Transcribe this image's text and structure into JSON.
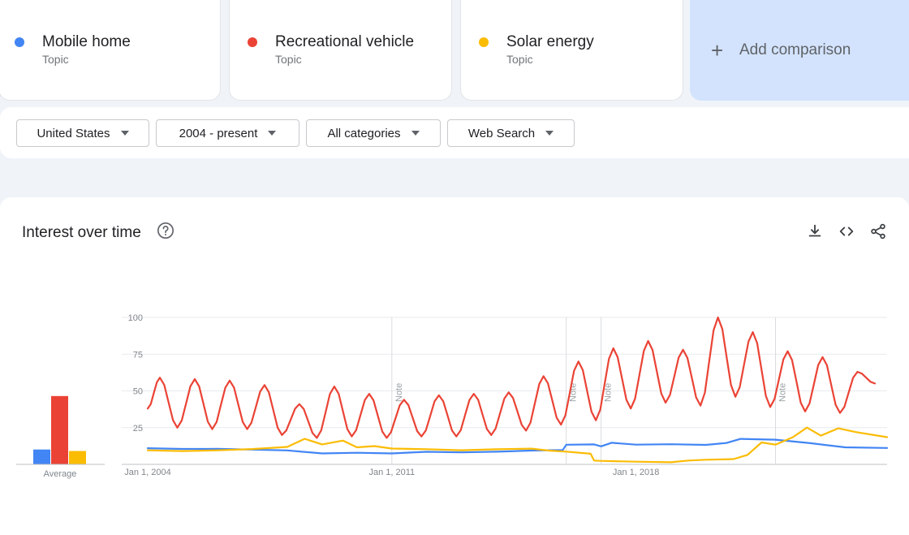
{
  "terms": [
    {
      "name": "Mobile home",
      "type": "Topic",
      "color": "#4285f4"
    },
    {
      "name": "Recreational vehicle",
      "type": "Topic",
      "color": "#ea4335"
    },
    {
      "name": "Solar energy",
      "type": "Topic",
      "color": "#fbbc04"
    }
  ],
  "add_comparison": {
    "icon": "+",
    "label": "Add comparison"
  },
  "filters": {
    "region": "United States",
    "time": "2004 - present",
    "category": "All categories",
    "search_type": "Web Search"
  },
  "panel": {
    "title": "Interest over time",
    "icons": [
      "help-icon",
      "download-icon",
      "embed-icon",
      "share-icon"
    ]
  },
  "chart_data": {
    "type": "line",
    "title": "Interest over time",
    "xlabel": "",
    "ylabel": "",
    "ylim": [
      0,
      100
    ],
    "y_ticks": [
      25,
      50,
      75,
      100
    ],
    "x_ticks": [
      "Jan 1, 2004",
      "Jan 1, 2011",
      "Jan 1, 2018"
    ],
    "x_range": [
      2004.0,
      2025.2
    ],
    "grid": true,
    "notes": [
      {
        "label": "Note",
        "x": 2011.0
      },
      {
        "label": "Note",
        "x": 2016.0
      },
      {
        "label": "Note",
        "x": 2017.0
      },
      {
        "label": "Note",
        "x": 2022.0
      }
    ],
    "average_label": "Average",
    "averages": [
      {
        "name": "Mobile home",
        "value": 10
      },
      {
        "name": "Recreational vehicle",
        "value": 46
      },
      {
        "name": "Solar energy",
        "value": 9
      }
    ],
    "series": [
      {
        "name": "Mobile home",
        "color": "#4285f4",
        "points": [
          [
            2004.0,
            11
          ],
          [
            2005.0,
            10
          ],
          [
            2006.0,
            10
          ],
          [
            2007.0,
            10
          ],
          [
            2008.0,
            10
          ],
          [
            2009.0,
            8
          ],
          [
            2010.0,
            8
          ],
          [
            2011.0,
            7
          ],
          [
            2012.0,
            8
          ],
          [
            2013.0,
            8
          ],
          [
            2014.0,
            9
          ],
          [
            2015.0,
            10
          ],
          [
            2015.9,
            10
          ],
          [
            2016.0,
            13
          ],
          [
            2016.8,
            13
          ],
          [
            2017.0,
            12
          ],
          [
            2017.3,
            15
          ],
          [
            2018.0,
            14
          ],
          [
            2019.0,
            14
          ],
          [
            2020.0,
            13
          ],
          [
            2020.6,
            14
          ],
          [
            2021.0,
            17
          ],
          [
            2022.0,
            17
          ],
          [
            2023.0,
            15
          ],
          [
            2024.0,
            12
          ],
          [
            2025.2,
            11
          ]
        ]
      },
      {
        "name": "Recreational vehicle",
        "color": "#ea4335",
        "peaks": [
          [
            2004.35,
            59
          ],
          [
            2005.35,
            58
          ],
          [
            2006.35,
            57
          ],
          [
            2007.35,
            54
          ],
          [
            2008.35,
            41
          ],
          [
            2009.35,
            53
          ],
          [
            2010.35,
            48
          ],
          [
            2011.35,
            44
          ],
          [
            2012.35,
            47
          ],
          [
            2013.35,
            48
          ],
          [
            2014.35,
            49
          ],
          [
            2015.35,
            60
          ],
          [
            2016.35,
            70
          ],
          [
            2017.35,
            79
          ],
          [
            2018.35,
            84
          ],
          [
            2019.35,
            78
          ],
          [
            2020.35,
            100
          ],
          [
            2021.35,
            90
          ],
          [
            2022.35,
            77
          ],
          [
            2023.35,
            73
          ],
          [
            2024.35,
            63
          ]
        ],
        "troughs": [
          [
            2004.0,
            38
          ],
          [
            2004.85,
            25
          ],
          [
            2005.85,
            24
          ],
          [
            2006.85,
            24
          ],
          [
            2007.85,
            20
          ],
          [
            2008.85,
            18
          ],
          [
            2009.85,
            19
          ],
          [
            2010.85,
            18
          ],
          [
            2011.85,
            19
          ],
          [
            2012.85,
            19
          ],
          [
            2013.85,
            20
          ],
          [
            2014.85,
            23
          ],
          [
            2015.85,
            27
          ],
          [
            2016.85,
            30
          ],
          [
            2017.85,
            38
          ],
          [
            2018.85,
            42
          ],
          [
            2019.85,
            40
          ],
          [
            2020.85,
            46
          ],
          [
            2021.85,
            39
          ],
          [
            2022.85,
            36
          ],
          [
            2023.85,
            35
          ],
          [
            2024.85,
            55
          ]
        ]
      },
      {
        "name": "Solar energy",
        "color": "#fbbc04",
        "points": [
          [
            2004.0,
            9
          ],
          [
            2005.0,
            9
          ],
          [
            2006.0,
            10
          ],
          [
            2007.0,
            11
          ],
          [
            2008.0,
            12
          ],
          [
            2008.5,
            17
          ],
          [
            2009.0,
            13
          ],
          [
            2009.6,
            16
          ],
          [
            2010.0,
            12
          ],
          [
            2010.5,
            13
          ],
          [
            2011.0,
            11
          ],
          [
            2012.0,
            10
          ],
          [
            2013.0,
            9
          ],
          [
            2014.0,
            10
          ],
          [
            2015.0,
            11
          ],
          [
            2015.5,
            10
          ],
          [
            2016.0,
            9
          ],
          [
            2016.7,
            7
          ],
          [
            2016.8,
            2
          ],
          [
            2017.0,
            2
          ],
          [
            2018.0,
            2
          ],
          [
            2019.0,
            2
          ],
          [
            2019.5,
            3
          ],
          [
            2020.0,
            3
          ],
          [
            2020.8,
            3
          ],
          [
            2021.2,
            6
          ],
          [
            2021.6,
            15
          ],
          [
            2022.0,
            14
          ],
          [
            2022.5,
            19
          ],
          [
            2022.9,
            25
          ],
          [
            2023.3,
            19
          ],
          [
            2023.8,
            24
          ],
          [
            2024.3,
            22
          ],
          [
            2025.2,
            19
          ]
        ]
      }
    ]
  }
}
